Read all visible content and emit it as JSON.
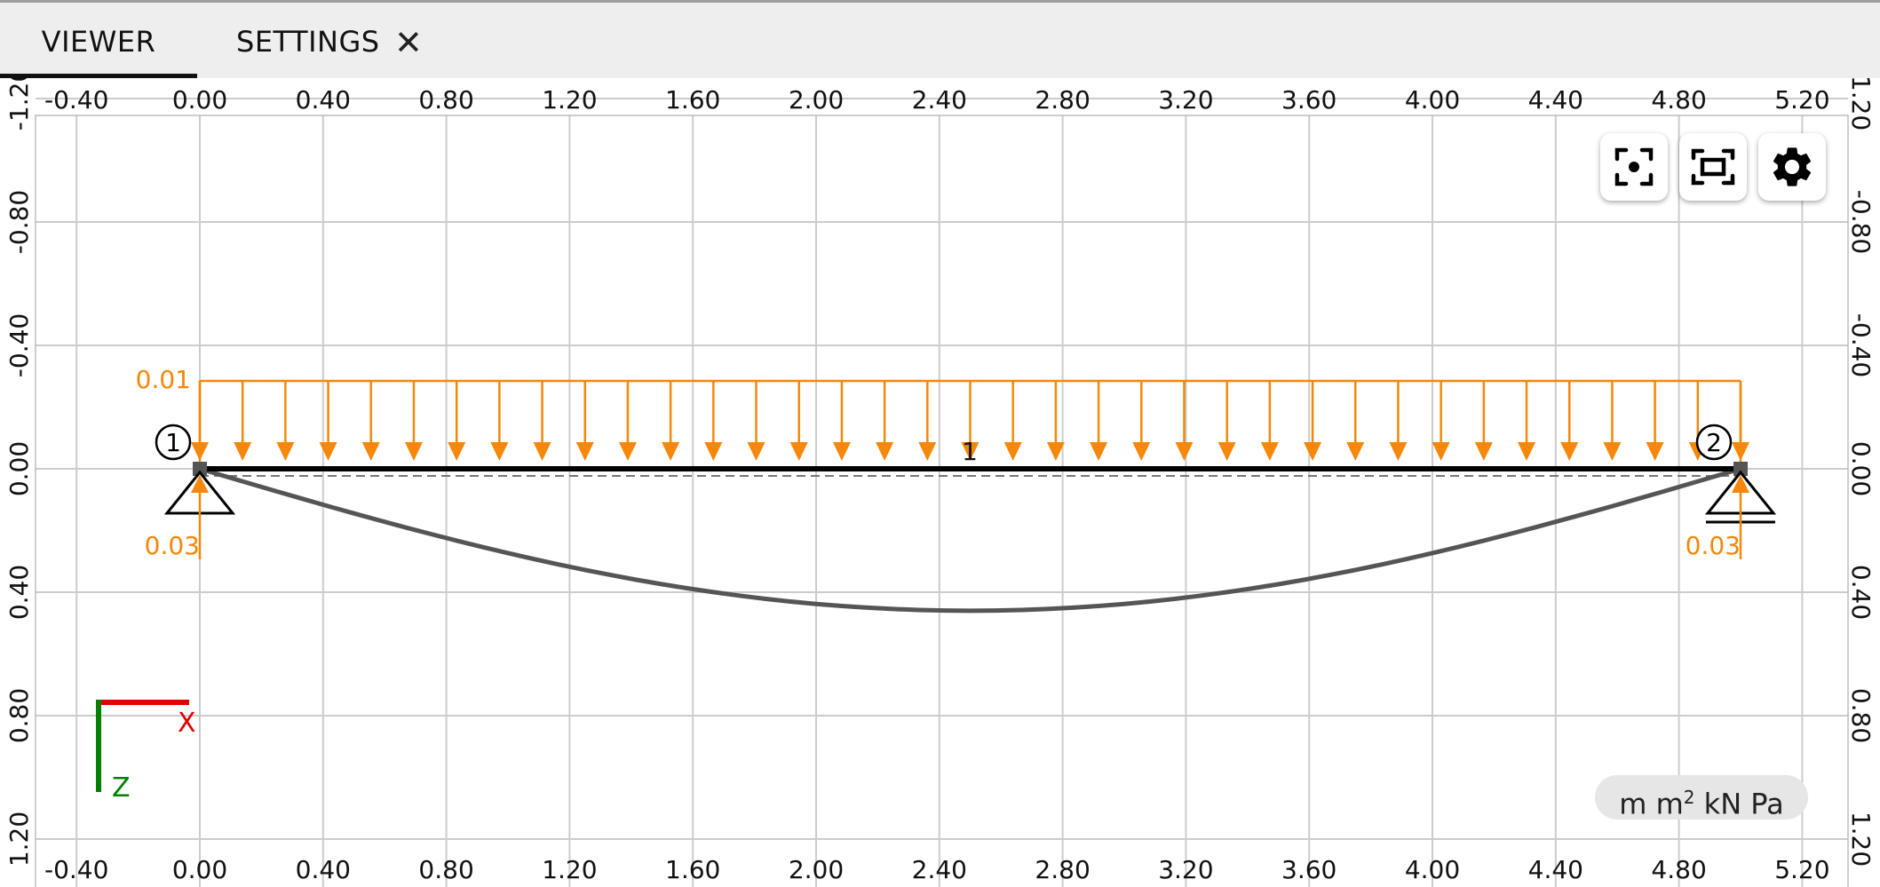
{
  "tabs": [
    {
      "label": "VIEWER",
      "active": true
    },
    {
      "label": "SETTINGS",
      "active": false
    }
  ],
  "close_symbol": "✕",
  "axes": {
    "x_ticks": [
      "-0.40",
      "0.00",
      "0.40",
      "0.80",
      "1.20",
      "1.60",
      "2.00",
      "2.40",
      "2.80",
      "3.20",
      "3.60",
      "4.00",
      "4.40",
      "4.80",
      "5.20"
    ],
    "y_ticks": [
      "-1.20",
      "-0.80",
      "-0.40",
      "0.00",
      "0.40",
      "0.80",
      "1.20"
    ],
    "x_range": [
      -0.4,
      5.2
    ],
    "y_range": [
      -1.2,
      1.2
    ],
    "grid": true,
    "coordinate_system": {
      "x_label": "X",
      "z_label": "Z"
    }
  },
  "model": {
    "nodes": [
      {
        "id": "1",
        "x": 0,
        "y": 0
      },
      {
        "id": "2",
        "x": 5,
        "y": 0
      }
    ],
    "element_label": "1",
    "distributed_load_label": "0.01",
    "reactions": [
      "0.03",
      "0.03"
    ],
    "max_deflection_plot": 0.46
  },
  "units": {
    "m": "m",
    "m2": "m",
    "m2_exp": "2",
    "force": "kN",
    "pressure": "Pa"
  },
  "icons": [
    "focus-icon",
    "fit-screen-icon",
    "gear-icon"
  ],
  "colors": {
    "load": "#f5870a",
    "beam": "#000000",
    "deflection": "#555555",
    "grid": "#cccccc",
    "x_axis": "#e00000",
    "z_axis": "#008000"
  }
}
